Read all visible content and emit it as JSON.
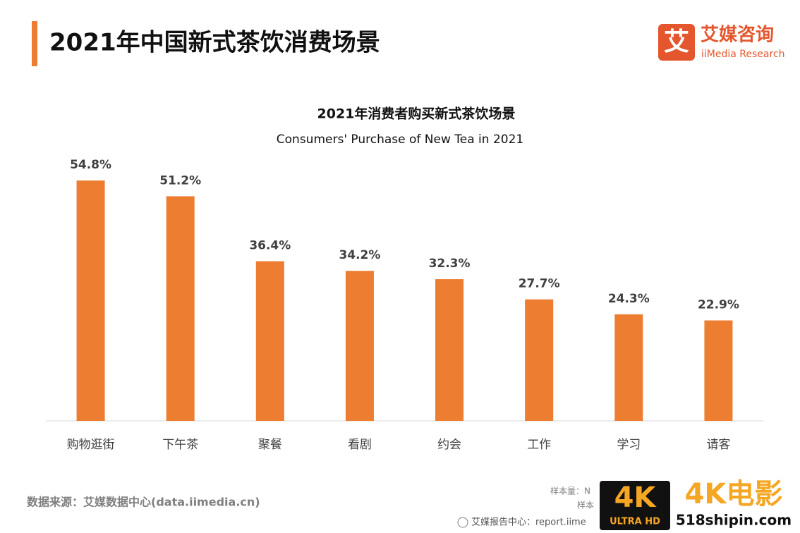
{
  "header": {
    "title": "2021年中国新式茶饮消费场景"
  },
  "logo": {
    "icon": "艾",
    "name": "艾媒咨询",
    "sub": "iiMedia Research"
  },
  "chart_data": {
    "type": "bar",
    "title": "2021年消费者购买新式茶饮场景",
    "subtitle": "Consumers' Purchase of New Tea in 2021",
    "categories": [
      "购物逛街",
      "下午茶",
      "聚餐",
      "看剧",
      "约会",
      "工作",
      "学习",
      "请客"
    ],
    "values": [
      54.8,
      51.2,
      36.4,
      34.2,
      32.3,
      27.7,
      24.3,
      22.9
    ],
    "value_labels": [
      "54.8%",
      "51.2%",
      "36.4%",
      "34.2%",
      "32.3%",
      "27.7%",
      "24.3%",
      "22.9%"
    ],
    "color": "#ed7d31"
  },
  "footer": {
    "source": "数据来源：艾媒数据中心(data.iimedia.cn)",
    "sample1": "样本量：N",
    "sample2": "样本",
    "report": "艾媒报告中心：report.iime"
  },
  "watermark": {
    "badge": "4K",
    "badge_sub": "ULTRA HD",
    "name": "4K电影",
    "site": "518shipin.com"
  }
}
